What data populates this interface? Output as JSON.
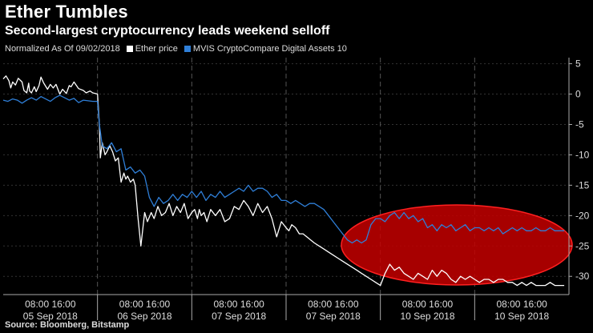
{
  "title": "Ether Tumbles",
  "subtitle": "Second-largest cryptocurrency leads weekend selloff",
  "legend_note": "Normalized As Of 09/02/2018",
  "source": "Source: Bloomberg, Bitstamp",
  "colors": {
    "ether": "#ffffff",
    "mvis": "#2f7fd8",
    "highlight": "#c40000",
    "highlight_stroke": "#ff2020",
    "background": "#000000"
  },
  "chart_data": {
    "type": "line",
    "title": "Ether Tumbles",
    "subtitle": "Second-largest cryptocurrency leads weekend selloff",
    "ylim": [
      -33,
      6
    ],
    "yticks": [
      5,
      0,
      -5,
      -10,
      -15,
      -20,
      -25,
      -30
    ],
    "x_groups": [
      {
        "times": "08:00 16:00",
        "date": "05 Sep 2018"
      },
      {
        "times": "08:00 16:00",
        "date": "06 Sep 2018"
      },
      {
        "times": "08:00 16:00",
        "date": "07 Sep 2018"
      },
      {
        "times": "08:00 16:00",
        "date": "07 Sep 2018"
      },
      {
        "times": "08:00 16:00",
        "date": "10 Sep 2018"
      },
      {
        "times": "08:00 16:00",
        "date": "10 Sep 2018"
      }
    ],
    "series": [
      {
        "name": "Ether price",
        "color": "#ffffff",
        "x": [
          0,
          0.03,
          0.06,
          0.08,
          0.1,
          0.13,
          0.16,
          0.2,
          0.22,
          0.25,
          0.27,
          0.28,
          0.3,
          0.33,
          0.35,
          0.38,
          0.4,
          0.43,
          0.47,
          0.5,
          0.53,
          0.56,
          0.6,
          0.63,
          0.67,
          0.7,
          0.72,
          0.75,
          0.8,
          0.85,
          0.88,
          0.92,
          0.95,
          1.0,
          1.02,
          1.03,
          1.05,
          1.08,
          1.1,
          1.13,
          1.16,
          1.19,
          1.22,
          1.25,
          1.28,
          1.3,
          1.32,
          1.35,
          1.38,
          1.4,
          1.43,
          1.46,
          1.5,
          1.53,
          1.57,
          1.6,
          1.64,
          1.68,
          1.72,
          1.76,
          1.8,
          1.84,
          1.88,
          1.92,
          1.96,
          2.0,
          2.03,
          2.06,
          2.08,
          2.1,
          2.13,
          2.16,
          2.2,
          2.25,
          2.3,
          2.35,
          2.4,
          2.45,
          2.5,
          2.55,
          2.6,
          2.65,
          2.7,
          2.75,
          2.8,
          2.85,
          2.9,
          2.95,
          3.0,
          3.03,
          3.06,
          3.1,
          3.14,
          3.18,
          3.22,
          3.26,
          3.3,
          3.35,
          3.4,
          3.45,
          3.5,
          3.55,
          3.6,
          3.65,
          3.7,
          3.75,
          3.8,
          3.85,
          3.9,
          3.95,
          4.0,
          4.05,
          4.1,
          4.15,
          4.2,
          4.25,
          4.3,
          4.35,
          4.4,
          4.45,
          4.5,
          4.55,
          4.6,
          4.65,
          4.7,
          4.75,
          4.8,
          4.85,
          4.9,
          4.95,
          5.0,
          5.05,
          5.1,
          5.15,
          5.2,
          5.25,
          5.3,
          5.35,
          5.4,
          5.45,
          5.5,
          5.55,
          5.6,
          5.65,
          5.7,
          5.75,
          5.8,
          5.85,
          5.9,
          5.95
        ],
        "values": [
          2.5,
          3.0,
          2.2,
          1.0,
          2.0,
          1.5,
          2.6,
          2.0,
          0.6,
          0.2,
          1.8,
          0.5,
          0.2,
          1.2,
          0.4,
          1.4,
          2.8,
          1.8,
          0.8,
          1.6,
          1.0,
          1.6,
          0.0,
          0.8,
          0.1,
          1.4,
          1.2,
          2.0,
          0.9,
          0.6,
          0.2,
          0.5,
          0.2,
          0.0,
          -5.0,
          -10.5,
          -8.0,
          -10.0,
          -9.5,
          -8.5,
          -9.5,
          -11.0,
          -10.5,
          -14.5,
          -13.0,
          -14.0,
          -13.5,
          -14.5,
          -14.0,
          -15.0,
          -20.5,
          -25.0,
          -19.5,
          -21.0,
          -19.5,
          -20.5,
          -18.5,
          -20.0,
          -19.5,
          -18.0,
          -20.0,
          -18.5,
          -19.5,
          -18.0,
          -20.5,
          -19.5,
          -19.0,
          -20.5,
          -19.0,
          -20.0,
          -19.5,
          -21.0,
          -19.0,
          -20.0,
          -19.0,
          -21.0,
          -20.5,
          -18.5,
          -19.0,
          -17.5,
          -18.5,
          -20.0,
          -18.0,
          -19.5,
          -18.5,
          -20.5,
          -23.5,
          -21.0,
          -22.0,
          -22.5,
          -21.5,
          -22.0,
          -23.0,
          -23.0,
          -23.5,
          -24.0,
          -24.5,
          -25.0,
          -25.5,
          -26.0,
          -26.5,
          -27.0,
          -27.5,
          -28.0,
          -28.5,
          -29.0,
          -29.5,
          -30.0,
          -30.5,
          -31.0,
          -31.5,
          -29.5,
          -28.0,
          -29.0,
          -28.5,
          -29.5,
          -30.0,
          -30.5,
          -29.5,
          -30.0,
          -30.5,
          -29.0,
          -30.0,
          -29.0,
          -29.5,
          -30.5,
          -31.0,
          -30.0,
          -30.5,
          -30.0,
          -30.5,
          -31.0,
          -30.5,
          -30.5,
          -31.0,
          -30.5,
          -30.5,
          -31.0,
          -31.0,
          -31.5,
          -31.0,
          -31.5,
          -31.0,
          -31.5,
          -31.5,
          -31.5,
          -31.0,
          -31.5,
          -31.5,
          -31.5
        ]
      },
      {
        "name": "MVIS CryptoCompare Digital Assets 10",
        "color": "#2f7fd8",
        "x": [
          0,
          0.05,
          0.1,
          0.15,
          0.2,
          0.25,
          0.3,
          0.35,
          0.4,
          0.45,
          0.5,
          0.55,
          0.6,
          0.65,
          0.7,
          0.75,
          0.8,
          0.85,
          0.9,
          0.95,
          1.0,
          1.02,
          1.05,
          1.1,
          1.15,
          1.2,
          1.25,
          1.3,
          1.35,
          1.4,
          1.45,
          1.5,
          1.55,
          1.6,
          1.65,
          1.7,
          1.75,
          1.8,
          1.85,
          1.9,
          1.95,
          2.0,
          2.05,
          2.1,
          2.15,
          2.2,
          2.25,
          2.3,
          2.35,
          2.4,
          2.45,
          2.5,
          2.55,
          2.6,
          2.65,
          2.7,
          2.75,
          2.8,
          2.85,
          2.9,
          2.95,
          3.0,
          3.05,
          3.1,
          3.15,
          3.2,
          3.25,
          3.3,
          3.35,
          3.4,
          3.45,
          3.5,
          3.55,
          3.6,
          3.65,
          3.7,
          3.75,
          3.8,
          3.85,
          3.9,
          3.95,
          4.0,
          4.05,
          4.1,
          4.15,
          4.2,
          4.25,
          4.3,
          4.35,
          4.4,
          4.45,
          4.5,
          4.55,
          4.6,
          4.65,
          4.7,
          4.75,
          4.8,
          4.85,
          4.9,
          4.95,
          5.0,
          5.05,
          5.1,
          5.15,
          5.2,
          5.25,
          5.3,
          5.35,
          5.4,
          5.45,
          5.5,
          5.55,
          5.6,
          5.65,
          5.7,
          5.75,
          5.8,
          5.85,
          5.9,
          5.95
        ],
        "values": [
          -1.0,
          -1.2,
          -0.8,
          -1.0,
          -1.5,
          -1.0,
          -0.6,
          -1.0,
          -0.4,
          -0.8,
          -1.2,
          -0.6,
          -0.2,
          -0.6,
          -1.0,
          -0.7,
          -1.4,
          -1.0,
          -1.1,
          -1.2,
          -1.2,
          -5.0,
          -8.5,
          -9.0,
          -8.0,
          -9.5,
          -9.0,
          -12.5,
          -12.0,
          -13.0,
          -12.5,
          -13.5,
          -17.0,
          -18.5,
          -17.0,
          -18.0,
          -17.5,
          -16.5,
          -17.5,
          -16.5,
          -17.0,
          -16.0,
          -17.0,
          -16.0,
          -17.5,
          -16.5,
          -17.0,
          -16.0,
          -17.0,
          -16.5,
          -16.0,
          -15.5,
          -16.0,
          -15.0,
          -16.0,
          -15.5,
          -15.5,
          -16.0,
          -17.0,
          -16.5,
          -17.5,
          -17.5,
          -18.0,
          -17.5,
          -18.0,
          -18.5,
          -18.0,
          -18.0,
          -18.5,
          -19.0,
          -20.0,
          -21.0,
          -22.0,
          -23.0,
          -24.0,
          -24.5,
          -24.0,
          -24.5,
          -24.0,
          -21.5,
          -20.5,
          -20.5,
          -21.0,
          -20.0,
          -19.5,
          -20.5,
          -19.5,
          -20.5,
          -20.0,
          -21.0,
          -20.5,
          -22.0,
          -21.5,
          -22.5,
          -21.5,
          -22.0,
          -21.5,
          -22.5,
          -22.0,
          -21.5,
          -22.5,
          -22.0,
          -22.0,
          -22.5,
          -22.0,
          -22.5,
          -22.0,
          -23.0,
          -22.5,
          -22.0,
          -22.5,
          -22.0,
          -22.5,
          -22.5,
          -22.0,
          -22.5,
          -22.5,
          -22.0,
          -22.5,
          -22.5,
          -22.5
        ]
      }
    ],
    "highlight": {
      "shape": "ellipse",
      "color": "#c40000"
    }
  }
}
